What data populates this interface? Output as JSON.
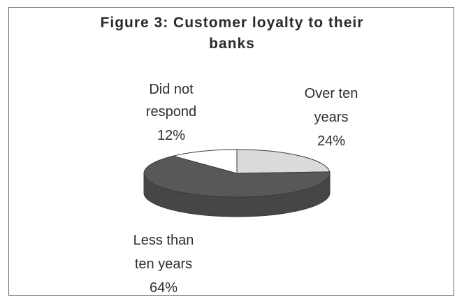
{
  "chart_data": {
    "type": "pie",
    "title_lines": [
      "Figure 3: Customer loyalty to their",
      "banks"
    ],
    "three_d": true,
    "slices": [
      {
        "label_lines": [
          "Over ten",
          "years"
        ],
        "value": 24,
        "value_text": "24%",
        "color": "#dadada"
      },
      {
        "label_lines": [
          "Less than",
          "ten years"
        ],
        "value": 64,
        "value_text": "64%",
        "color": "#585858"
      },
      {
        "label_lines": [
          "Did not",
          "respond"
        ],
        "value": 12,
        "value_text": "12%",
        "color": "#ffffff"
      }
    ]
  }
}
